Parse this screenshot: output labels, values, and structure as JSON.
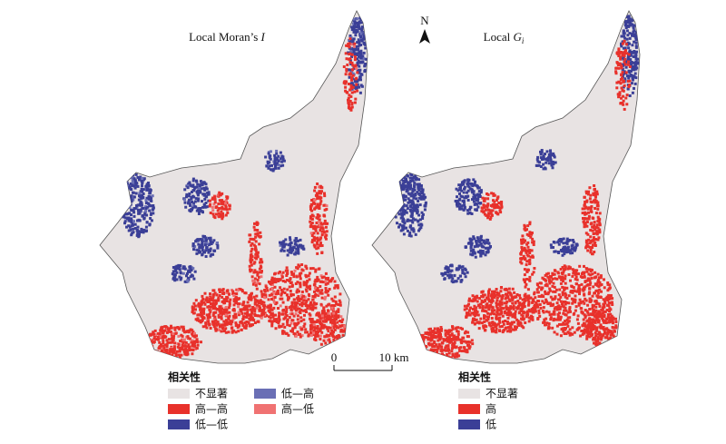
{
  "maps": [
    {
      "title": "Local Moran’s ",
      "title_italic": "I",
      "legend": {
        "title": "相关性",
        "items": [
          {
            "label": "不显著",
            "color": "#e8e3e3"
          },
          {
            "label": "高—高",
            "color": "#e8312b"
          },
          {
            "label": "低—低",
            "color": "#3b3f97"
          },
          {
            "label": "低—高",
            "color": "#6a6fb5"
          },
          {
            "label": "高—低",
            "color": "#f07272"
          }
        ]
      }
    },
    {
      "title": "Local ",
      "title_italic": "G",
      "title_sub": "i",
      "legend": {
        "title": "相关性",
        "items": [
          {
            "label": "不显著",
            "color": "#e8e3e3"
          },
          {
            "label": "高",
            "color": "#e8312b"
          },
          {
            "label": "低",
            "color": "#3b3f97"
          }
        ]
      }
    }
  ],
  "north": "N",
  "scale": {
    "start": "0",
    "end": "10 km"
  }
}
